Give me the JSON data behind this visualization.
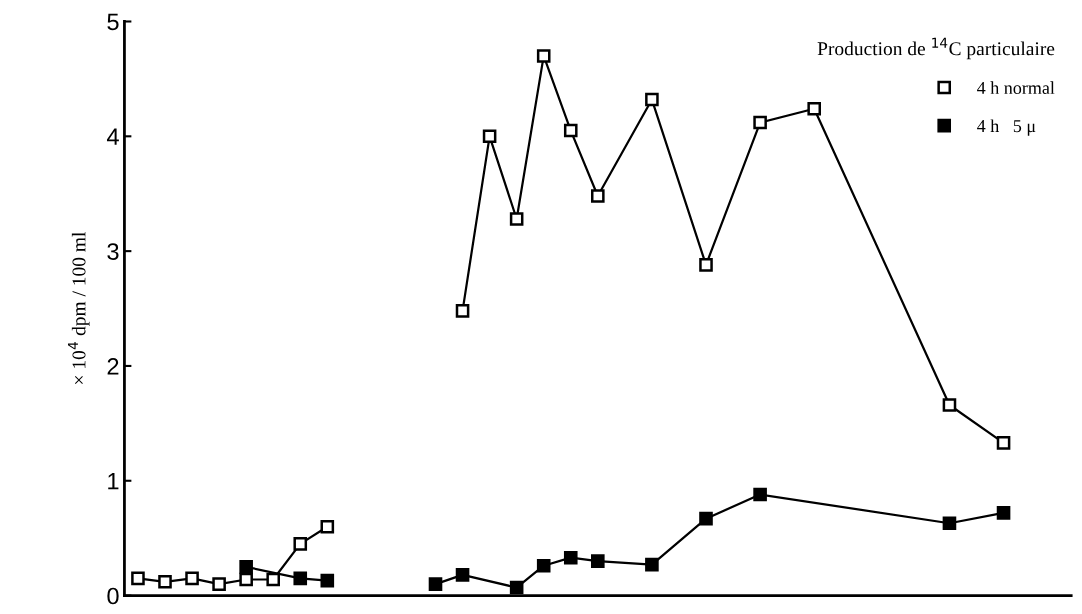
{
  "chart_data": {
    "type": "line",
    "categories": [
      null,
      null,
      null,
      null,
      null,
      null,
      null,
      null,
      null,
      null,
      null,
      null,
      null,
      null,
      null,
      null,
      null,
      null,
      null,
      null,
      null,
      null,
      null,
      null,
      null,
      null,
      null,
      null,
      null,
      null,
      null,
      null,
      null,
      null,
      null
    ],
    "series": [
      {
        "name": "4 h normal",
        "color": "#ffffff",
        "values": [
          null,
          null,
          null,
          null,
          null,
          null,
          null,
          null,
          null,
          null,
          null,
          null,
          2.48,
          4.0,
          3.28,
          4.7,
          4.05,
          3.48,
          null,
          4.32,
          null,
          2.88,
          null,
          4.12,
          null,
          4.24,
          null,
          null,
          null,
          null,
          1.66,
          null,
          1.33,
          null,
          null
        ]
      },
      {
        "color": "#ffffff",
        "values": [
          0.15,
          0.12,
          0.15,
          0.1,
          0.14,
          0.14,
          0.45,
          0.6,
          null,
          null,
          null,
          null,
          null,
          null,
          null,
          null,
          null,
          null,
          null,
          null,
          null,
          null,
          null,
          null,
          null,
          null,
          null,
          null,
          null,
          null,
          null,
          null,
          null,
          null,
          null
        ]
      },
      {
        "name": "4 h   5 μ",
        "color": "#000000",
        "values": [
          null,
          null,
          null,
          null,
          null,
          null,
          null,
          null,
          null,
          null,
          null,
          0.1,
          0.18,
          null,
          0.07,
          0.26,
          0.33,
          0.3,
          null,
          0.27,
          null,
          0.67,
          null,
          0.88,
          null,
          null,
          null,
          null,
          null,
          null,
          0.63,
          null,
          0.72,
          null,
          null
        ]
      },
      {
        "color": "#000000",
        "values": [
          null,
          null,
          null,
          null,
          0.25,
          null,
          0.15,
          0.13,
          null,
          null,
          null,
          null,
          null,
          null,
          null,
          null,
          null,
          null,
          null,
          null,
          null,
          null,
          null,
          null,
          null,
          null,
          null,
          null,
          null,
          null,
          null,
          null,
          null,
          null,
          null
        ]
      }
    ],
    "ylabel": "× 10$^{4}$ dpm / 100 ml",
    "legend_title": "Production de $^{14}$C particulaire",
    "ylim": [
      0,
      5
    ],
    "yticks": [
      0,
      1,
      2,
      3,
      4,
      5
    ],
    "tick_labels": "y",
    "grid": false,
    "legend": "top right",
    "marker": "square",
    "line_style": "solid"
  }
}
